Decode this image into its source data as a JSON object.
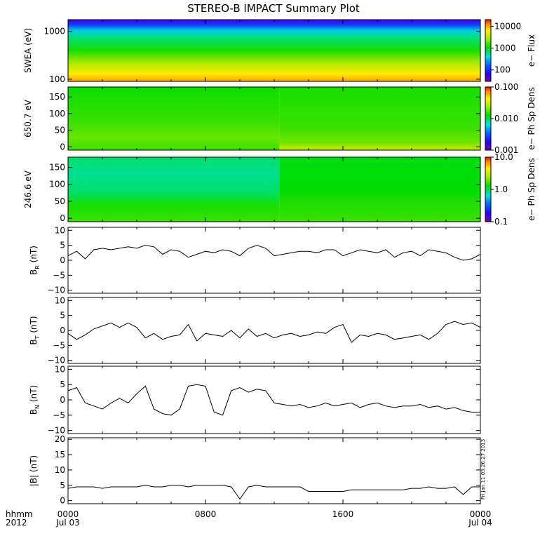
{
  "chart_data": {
    "title": "STEREO-B IMPACT Summary Plot",
    "time_axis": {
      "row1_labels": [
        "0000",
        "0800",
        "1600",
        "0000"
      ],
      "row2_labels": [
        "Jul 03",
        "",
        "",
        "Jul 04"
      ],
      "hours": [
        0,
        8,
        16,
        24
      ],
      "corner_label_1": "hhmm",
      "corner_label_2": "2012",
      "range_hours": [
        0,
        24
      ]
    },
    "timestamp_note": "Fri Jan 11 03:26:27 2013",
    "spectrograms": [
      {
        "id": "swea",
        "type": "heatmap",
        "ylabel": "SWEA (eV)",
        "yscale": "log",
        "ylim": [
          90,
          1750
        ],
        "yticks": [
          100,
          1000
        ],
        "ytick_labels": [
          "100",
          "1000"
        ],
        "colorbar": {
          "label": "e− Flux",
          "scale": "log",
          "range": [
            30,
            20000
          ],
          "ticks": [
            100,
            1000,
            10000
          ],
          "tick_labels": [
            "100",
            "1000",
            "10000"
          ]
        }
      },
      {
        "id": "pad650",
        "type": "heatmap",
        "ylabel": "650.7 eV",
        "yscale": "linear",
        "ylim": [
          -10,
          180
        ],
        "yticks": [
          0,
          50,
          100,
          150
        ],
        "ytick_labels": [
          "0",
          "50",
          "100",
          "150"
        ],
        "colorbar": {
          "label": "e− Ph Sp Dens",
          "scale": "log",
          "range": [
            0.001,
            0.1
          ],
          "ticks": [
            0.001,
            0.01,
            0.1
          ],
          "tick_labels": [
            "0.001",
            "0.010",
            "0.100"
          ]
        }
      },
      {
        "id": "pad246",
        "type": "heatmap",
        "ylabel": "246.6 eV",
        "yscale": "linear",
        "ylim": [
          -10,
          180
        ],
        "yticks": [
          0,
          50,
          100,
          150
        ],
        "ytick_labels": [
          "0",
          "50",
          "100",
          "150"
        ],
        "colorbar": {
          "label": "e− Ph Sp Dens",
          "scale": "log",
          "range": [
            0.1,
            10
          ],
          "ticks": [
            0.1,
            1,
            10
          ],
          "tick_labels": [
            "0.1",
            "1.0",
            "10.0"
          ]
        }
      }
    ],
    "line_panels": [
      {
        "id": "br",
        "type": "line",
        "ylabel_main": "B",
        "ylabel_sub": "R",
        "ylabel_unit": " (nT)",
        "ylim": [
          -11,
          11
        ],
        "yticks": [
          -10,
          -5,
          0,
          5,
          10
        ],
        "ytick_labels": [
          "−10",
          "−5",
          "0",
          "5",
          "10"
        ],
        "x": [
          0,
          0.5,
          1,
          1.5,
          2,
          2.5,
          3,
          3.5,
          4,
          4.5,
          5,
          5.5,
          6,
          6.5,
          7,
          7.5,
          8,
          8.5,
          9,
          9.5,
          10,
          10.5,
          11,
          11.5,
          12,
          12.5,
          13,
          13.5,
          14,
          14.5,
          15,
          15.5,
          16,
          16.5,
          17,
          17.5,
          18,
          18.5,
          19,
          19.5,
          20,
          20.5,
          21,
          21.5,
          22,
          22.5,
          23,
          23.5,
          24
        ],
        "y": [
          1.5,
          3,
          0.5,
          3.5,
          4,
          3.5,
          4,
          4.5,
          4,
          5,
          4.5,
          2,
          3.5,
          3,
          1,
          2,
          3,
          2.5,
          3.5,
          3,
          1.5,
          4,
          5,
          4,
          1.5,
          2,
          2.5,
          3,
          3,
          2.5,
          3.5,
          3.5,
          1.5,
          2.5,
          3.5,
          3,
          2.5,
          3.5,
          1,
          2.5,
          3,
          1.5,
          3.5,
          3,
          2.5,
          1,
          0,
          0.5,
          2
        ]
      },
      {
        "id": "bt",
        "type": "line",
        "ylabel_main": "B",
        "ylabel_sub": "T",
        "ylabel_unit": " (nT)",
        "ylim": [
          -11,
          11
        ],
        "yticks": [
          -10,
          -5,
          0,
          5,
          10
        ],
        "ytick_labels": [
          "−10",
          "−5",
          "0",
          "5",
          "10"
        ],
        "x": [
          0,
          0.5,
          1,
          1.5,
          2,
          2.5,
          3,
          3.5,
          4,
          4.5,
          5,
          5.5,
          6,
          6.5,
          7,
          7.5,
          8,
          8.5,
          9,
          9.5,
          10,
          10.5,
          11,
          11.5,
          12,
          12.5,
          13,
          13.5,
          14,
          14.5,
          15,
          15.5,
          16,
          16.5,
          17,
          17.5,
          18,
          18.5,
          19,
          19.5,
          20,
          20.5,
          21,
          21.5,
          22,
          22.5,
          23,
          23.5,
          24
        ],
        "y": [
          -1,
          -3,
          -1.5,
          0.5,
          1.5,
          2.5,
          1,
          2.5,
          1,
          -2.5,
          -1,
          -3,
          -2,
          -1.5,
          2,
          -3.5,
          -1,
          -1.5,
          -2,
          0,
          -2.5,
          0.5,
          -2,
          -1,
          -2.5,
          -1.5,
          -1,
          -2,
          -1.5,
          -0.5,
          -1,
          1,
          2,
          -4,
          -1.5,
          -2,
          -1,
          -1.5,
          -3,
          -2.5,
          -2,
          -1.5,
          -3,
          -1,
          2,
          3,
          2,
          2.5,
          1
        ]
      },
      {
        "id": "bn",
        "type": "line",
        "ylabel_main": "B",
        "ylabel_sub": "N",
        "ylabel_unit": " (nT)",
        "ylim": [
          -11,
          11
        ],
        "yticks": [
          -10,
          -5,
          0,
          5,
          10
        ],
        "ytick_labels": [
          "−10",
          "−5",
          "0",
          "5",
          "10"
        ],
        "x": [
          0,
          0.5,
          1,
          1.5,
          2,
          2.5,
          3,
          3.5,
          4,
          4.5,
          5,
          5.5,
          6,
          6.5,
          7,
          7.5,
          8,
          8.5,
          9,
          9.5,
          10,
          10.5,
          11,
          11.5,
          12,
          12.5,
          13,
          13.5,
          14,
          14.5,
          15,
          15.5,
          16,
          16.5,
          17,
          17.5,
          18,
          18.5,
          19,
          19.5,
          20,
          20.5,
          21,
          21.5,
          22,
          22.5,
          23,
          23.5,
          24
        ],
        "y": [
          3,
          4,
          -1,
          -2,
          -3,
          -1,
          0.5,
          -1,
          2,
          4.5,
          -3,
          -4.5,
          -5,
          -3,
          4.5,
          5,
          4.5,
          -4,
          -5,
          3,
          4,
          2.5,
          3.5,
          3,
          -1,
          -1.5,
          -2,
          -1.5,
          -2.5,
          -2,
          -1,
          -2,
          -1.5,
          -1,
          -2.5,
          -1.5,
          -1,
          -2,
          -2.5,
          -2,
          -2,
          -1.5,
          -2.5,
          -2,
          -3,
          -2.5,
          -3.5,
          -4,
          -4
        ]
      },
      {
        "id": "bmag",
        "type": "line",
        "ylabel_main": "|B|",
        "ylabel_sub": "",
        "ylabel_unit": " (nT)",
        "ylim": [
          -1,
          20.5
        ],
        "yticks": [
          0,
          5,
          10,
          15,
          20
        ],
        "ytick_labels": [
          "0",
          "5",
          "10",
          "15",
          "20"
        ],
        "x": [
          0,
          0.5,
          1,
          1.5,
          2,
          2.5,
          3,
          3.5,
          4,
          4.5,
          5,
          5.5,
          6,
          6.5,
          7,
          7.5,
          8,
          8.5,
          9,
          9.5,
          10,
          10.5,
          11,
          11.5,
          12,
          12.5,
          13,
          13.5,
          14,
          14.5,
          15,
          15.5,
          16,
          16.5,
          17,
          17.5,
          18,
          18.5,
          19,
          19.5,
          20,
          20.5,
          21,
          21.5,
          22,
          22.5,
          23,
          23.5,
          24
        ],
        "y": [
          4,
          4.5,
          4.5,
          4.5,
          4,
          4.5,
          4.5,
          4.5,
          4.5,
          5,
          4.5,
          4.5,
          5,
          5,
          4.5,
          5,
          5,
          5,
          5,
          4.5,
          0.5,
          4.5,
          5,
          4.5,
          4.5,
          4.5,
          4.5,
          4.5,
          3,
          3,
          3,
          3,
          3,
          3.5,
          3.5,
          3.5,
          3.5,
          3.5,
          3.5,
          3.5,
          4,
          4,
          4.5,
          4,
          4,
          4.5,
          2,
          4.5,
          4.5
        ]
      }
    ]
  }
}
